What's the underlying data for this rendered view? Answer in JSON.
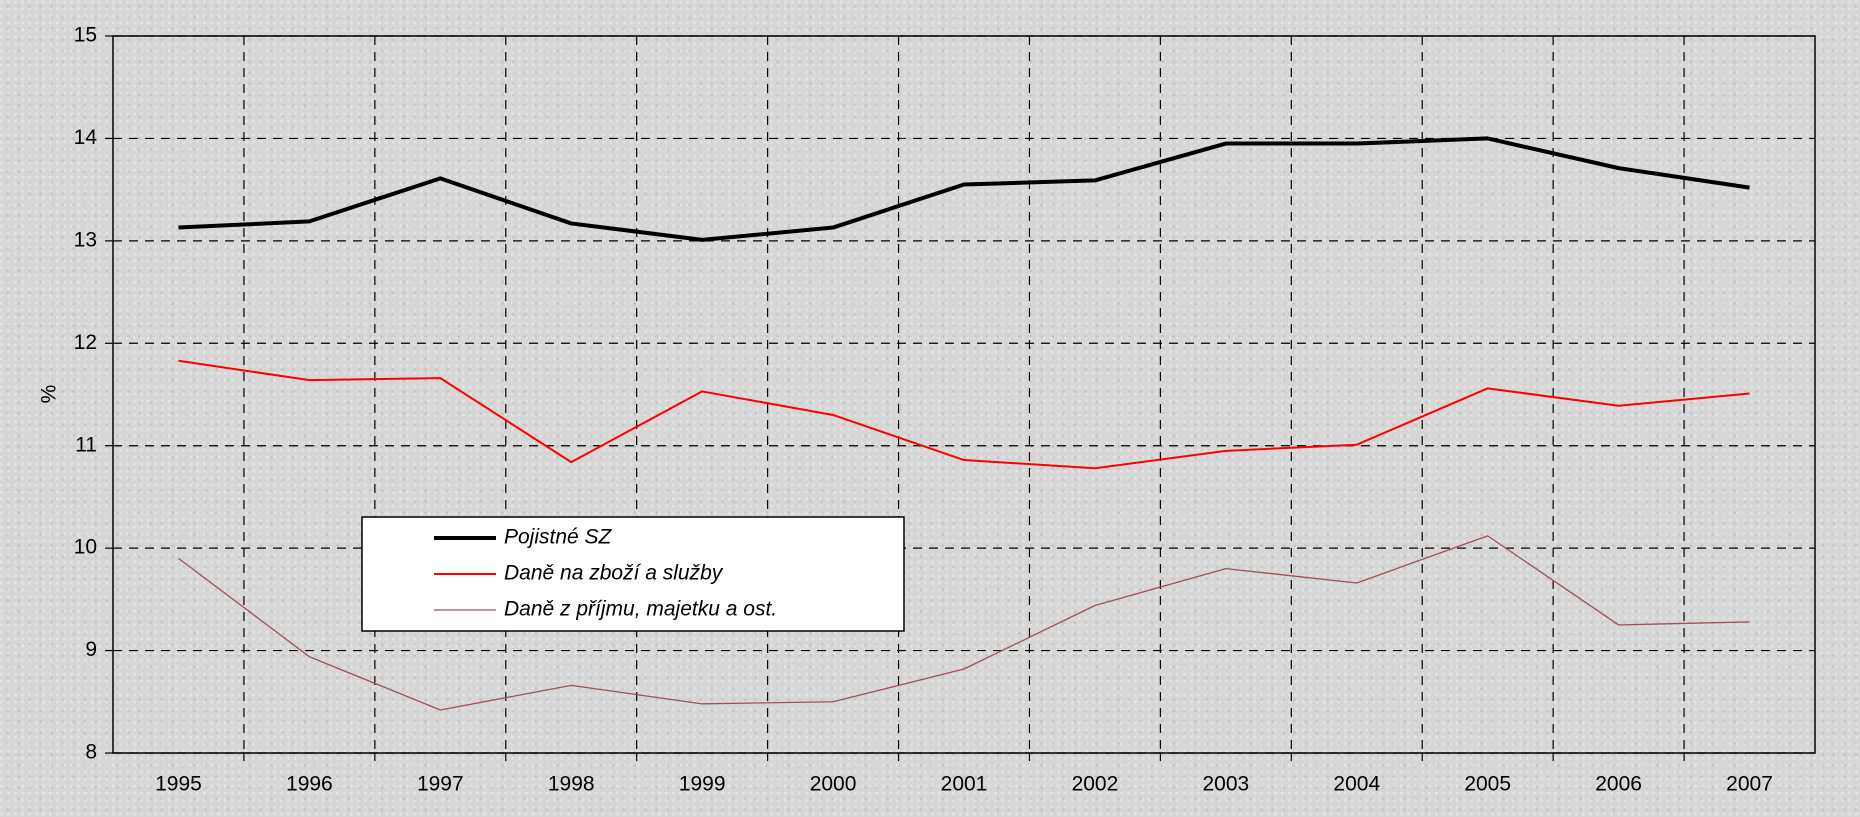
{
  "chart_data": {
    "type": "line",
    "y_label": "%",
    "categories": [
      "1995",
      "1996",
      "1997",
      "1998",
      "1999",
      "2000",
      "2001",
      "2002",
      "2003",
      "2004",
      "2005",
      "2006",
      "2007"
    ],
    "series": [
      {
        "name": "Pojistné SZ",
        "color": "#000000",
        "values": [
          13.13,
          13.19,
          13.61,
          13.17,
          13.01,
          13.13,
          13.55,
          13.59,
          13.95,
          13.95,
          14.0,
          13.71,
          13.52
        ]
      },
      {
        "name": "Daně na zboží a služby",
        "color": "#ff0000",
        "values": [
          11.83,
          11.64,
          11.66,
          10.84,
          11.53,
          11.3,
          10.86,
          10.78,
          10.95,
          11.01,
          11.56,
          11.39,
          11.51
        ]
      },
      {
        "name": "Daně z příjmu, majetku a ost.",
        "color": "#a05050",
        "values": [
          9.9,
          8.94,
          8.42,
          8.66,
          8.48,
          8.5,
          8.82,
          9.44,
          9.8,
          9.66,
          10.12,
          9.25,
          9.28
        ]
      }
    ],
    "ylim": [
      8,
      15
    ],
    "yticks": [
      8,
      9,
      10,
      11,
      12,
      13,
      14,
      15
    ],
    "grid": true,
    "legend": "lower-left"
  }
}
